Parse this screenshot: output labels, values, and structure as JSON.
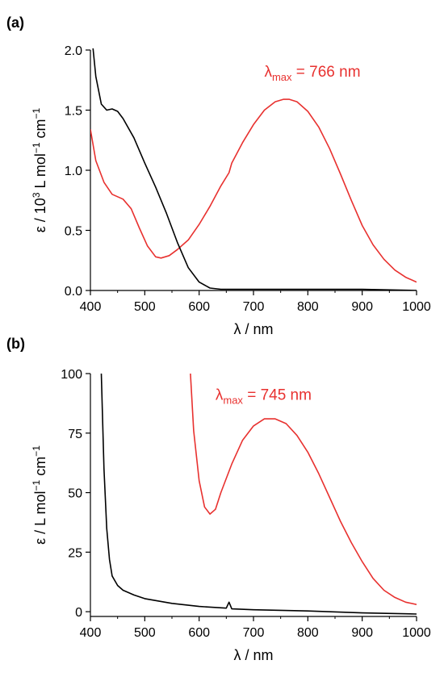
{
  "chart_data": [
    {
      "type": "line",
      "panel_label": "(a)",
      "xlabel": "λ / nm",
      "ylabel_prefix": "ε / 10",
      "ylabel_sup1": "3",
      "ylabel_mid": " L mol",
      "ylabel_sup2": "−1",
      "ylabel_mid2": " cm",
      "ylabel_sup3": "−1",
      "xlim": [
        400,
        1000
      ],
      "ylim": [
        0,
        2.0
      ],
      "x_ticks": [
        400,
        500,
        600,
        700,
        800,
        900,
        1000
      ],
      "y_ticks": [
        "0.0",
        "0.5",
        "1.0",
        "1.5",
        "2.0"
      ],
      "y_tick_values": [
        0,
        0.5,
        1.0,
        1.5,
        2.0
      ],
      "grid": false,
      "annotation": {
        "lambda": "λ",
        "sub": "max",
        "rest": " = 766 nm",
        "color": "#e8312f",
        "x": 720,
        "y": 1.78
      },
      "series": [
        {
          "color": "#e8312f",
          "x": [
            400,
            410,
            425,
            440,
            460,
            475,
            490,
            505,
            520,
            530,
            545,
            560,
            580,
            600,
            620,
            640,
            655,
            660,
            680,
            700,
            720,
            740,
            755,
            766,
            780,
            800,
            820,
            840,
            860,
            880,
            900,
            920,
            940,
            960,
            980,
            1000
          ],
          "y": [
            1.34,
            1.08,
            0.9,
            0.8,
            0.76,
            0.68,
            0.52,
            0.37,
            0.28,
            0.27,
            0.29,
            0.34,
            0.42,
            0.55,
            0.7,
            0.87,
            0.98,
            1.06,
            1.23,
            1.38,
            1.5,
            1.57,
            1.59,
            1.59,
            1.57,
            1.49,
            1.36,
            1.18,
            0.97,
            0.75,
            0.54,
            0.38,
            0.26,
            0.17,
            0.11,
            0.07
          ]
        },
        {
          "color": "#000000",
          "x": [
            404,
            410,
            420,
            430,
            440,
            450,
            460,
            480,
            500,
            520,
            540,
            560,
            580,
            600,
            620,
            640,
            655,
            700,
            800,
            900,
            1000
          ],
          "y": [
            2.05,
            1.78,
            1.55,
            1.5,
            1.51,
            1.49,
            1.43,
            1.27,
            1.06,
            0.86,
            0.64,
            0.4,
            0.19,
            0.07,
            0.02,
            0.01,
            0.01,
            0.01,
            0.01,
            0.01,
            0.0
          ]
        }
      ]
    },
    {
      "type": "line",
      "panel_label": "(b)",
      "xlabel": "λ / nm",
      "ylabel_prefix": "ε / L mol",
      "ylabel_sup1": "−1",
      "ylabel_mid": " cm",
      "ylabel_sup2": "−1",
      "xlim": [
        400,
        1000
      ],
      "ylim": [
        -2,
        100
      ],
      "x_ticks": [
        400,
        500,
        600,
        700,
        800,
        900,
        1000
      ],
      "y_ticks": [
        "0",
        "25",
        "50",
        "75",
        "100"
      ],
      "y_tick_values": [
        0,
        25,
        50,
        75,
        100
      ],
      "grid": false,
      "annotation": {
        "lambda": "λ",
        "sub": "max",
        "rest": " = 745 nm",
        "color": "#e8312f",
        "x": 630,
        "y": 89
      },
      "series": [
        {
          "color": "#e8312f",
          "x": [
            584,
            590,
            600,
            610,
            620,
            630,
            640,
            660,
            680,
            700,
            720,
            740,
            760,
            780,
            800,
            820,
            840,
            860,
            880,
            900,
            920,
            940,
            960,
            980,
            1000
          ],
          "y": [
            100,
            76,
            55,
            44,
            41,
            43,
            50,
            62,
            72,
            78,
            81,
            81,
            79,
            74,
            67,
            58,
            48,
            38,
            29,
            21,
            14,
            9,
            6,
            4,
            3
          ]
        },
        {
          "color": "#000000",
          "x": [
            420,
            425,
            430,
            435,
            440,
            450,
            460,
            480,
            500,
            550,
            600,
            650,
            655,
            660,
            700,
            800,
            900,
            1000
          ],
          "y": [
            100,
            60,
            35,
            22,
            15,
            11,
            9,
            7,
            5.5,
            3.5,
            2.2,
            1.5,
            4,
            1.2,
            0.8,
            0.3,
            -0.5,
            -1
          ]
        }
      ]
    }
  ]
}
